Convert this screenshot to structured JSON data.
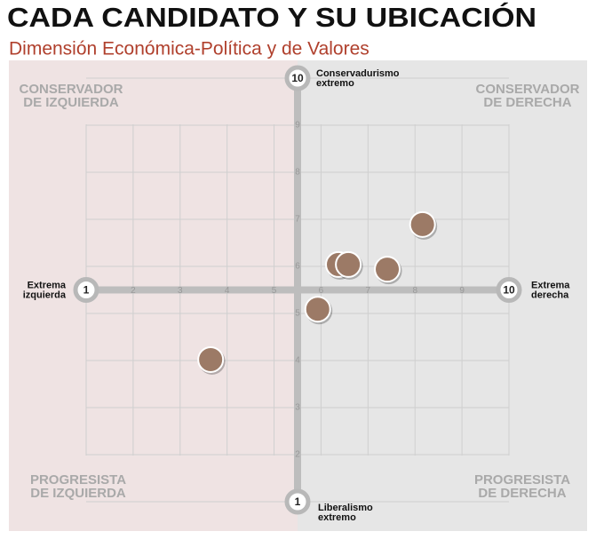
{
  "chart_data": {
    "type": "scatter",
    "title": "CADA CANDIDATO Y SU UBICACIÓN",
    "subtitle": "Dimensión Económica-Política y de Valores",
    "axis_labels": {
      "left": [
        "Extrema",
        "izquierda"
      ],
      "right": [
        "Extrema",
        "derecha"
      ],
      "top": [
        "Conservadurismo",
        "extremo"
      ],
      "bottom": [
        "Liberalismo",
        "extremo"
      ]
    },
    "quadrants": {
      "top_left": [
        "CONSERVADOR",
        "DE IZQUIERDA"
      ],
      "top_right": [
        "CONSERVADOR",
        "DE DERECHA"
      ],
      "bottom_left": [
        "PROGRESISTA",
        "DE IZQUIERDA"
      ],
      "bottom_right": [
        "PROGRESISTA",
        "DE DERECHA"
      ]
    },
    "xlim": [
      1,
      10
    ],
    "ylim": [
      1,
      10
    ],
    "xticks": [
      1,
      2,
      3,
      4,
      5,
      6,
      7,
      8,
      9,
      10
    ],
    "yticks": [
      1,
      2,
      3,
      4,
      5,
      6,
      7,
      8,
      9,
      10
    ],
    "grid": true,
    "series": [
      {
        "color": "#9c7a66",
        "x": [
          8.16,
          6.37,
          6.58,
          7.41,
          5.93,
          3.65
        ],
        "values": [
          6.89,
          6.04,
          6.04,
          5.94,
          5.09,
          4.02
        ]
      }
    ]
  }
}
